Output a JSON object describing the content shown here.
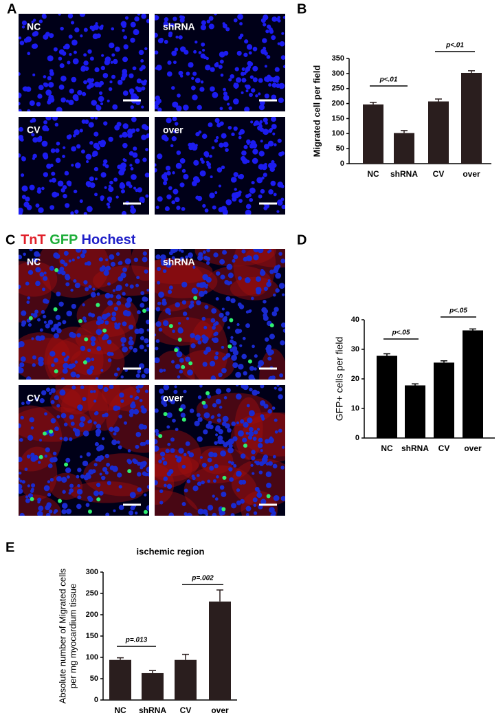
{
  "figure": {
    "panel_labels": [
      "A",
      "B",
      "C",
      "D",
      "E"
    ],
    "panel_a_images": [
      "NC",
      "shRNA",
      "CV",
      "over"
    ],
    "panel_c_legend": [
      {
        "text": "TnT",
        "color": "#e0202a"
      },
      {
        "text": "GFP",
        "color": "#1fae3a"
      },
      {
        "text": "Hochest",
        "color": "#2020c8"
      }
    ],
    "panel_c_images": [
      "NC",
      "shRNA",
      "CV",
      "over"
    ]
  },
  "chart_data": [
    {
      "type": "bar",
      "ylabel": "Migrated cell per field",
      "categories": [
        "NC",
        "shRNA",
        "CV",
        "over"
      ],
      "series": [
        {
          "values": [
            197,
            102,
            207,
            302
          ],
          "errors": [
            7,
            8,
            8,
            7
          ],
          "color": "#2a1e1e"
        }
      ],
      "ylim": [
        0,
        350
      ],
      "yticks": [
        0,
        50,
        100,
        150,
        200,
        250,
        300,
        350
      ],
      "annotations": [
        "p<.01",
        "p<.01"
      ]
    },
    {
      "type": "bar",
      "ylabel": "GFP+ cells per field",
      "categories": [
        "NC",
        "shRNA",
        "CV",
        "over"
      ],
      "series": [
        {
          "values": [
            27.8,
            17.8,
            25.5,
            36.4
          ],
          "errors": [
            0.7,
            0.5,
            0.6,
            0.5
          ],
          "color": "#000000"
        }
      ],
      "ylim": [
        0,
        40
      ],
      "yticks": [
        0,
        10,
        20,
        30,
        40
      ],
      "annotations": [
        "p<.05",
        "p<.05"
      ]
    },
    {
      "type": "bar",
      "title": "ischemic region",
      "ylabel": [
        "Absolute number of Migrated cells",
        "per mg myocardium tissue"
      ],
      "categories": [
        "NC",
        "shRNA",
        "CV",
        "over"
      ],
      "series": [
        {
          "values": [
            94,
            63,
            94,
            231
          ],
          "errors": [
            5,
            6,
            13,
            27
          ],
          "color": "#2a1e1e"
        }
      ],
      "ylim": [
        0,
        300
      ],
      "yticks": [
        0,
        50,
        100,
        150,
        200,
        250,
        300
      ],
      "annotations": [
        "p=.013",
        "p=.002"
      ]
    }
  ]
}
